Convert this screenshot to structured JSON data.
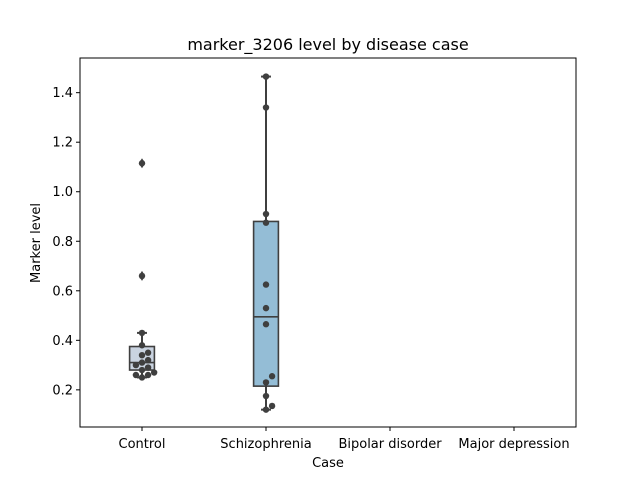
{
  "chart_data": {
    "type": "box",
    "title": "marker_3206 level by disease case",
    "xlabel": "Case",
    "ylabel": "Marker level",
    "ylim": [
      0.05,
      1.54
    ],
    "yticks": [
      0.2,
      0.4,
      0.6,
      0.8,
      1.0,
      1.2,
      1.4
    ],
    "ytick_labels": [
      "0.2",
      "0.4",
      "0.6",
      "0.8",
      "1.0",
      "1.2",
      "1.4"
    ],
    "grid": false,
    "categories": [
      "Control",
      "Schizophrenia",
      "Bipolar disorder",
      "Major depression"
    ],
    "boxes": [
      {
        "category": "Control",
        "whisker_low": 0.25,
        "q1": 0.28,
        "median": 0.31,
        "q3": 0.375,
        "whisker_high": 0.43,
        "fliers": [
          0.66,
          1.115
        ],
        "points": [
          0.25,
          0.26,
          0.26,
          0.27,
          0.28,
          0.29,
          0.3,
          0.31,
          0.32,
          0.34,
          0.35,
          0.38,
          0.43,
          0.66,
          1.115
        ]
      },
      {
        "category": "Schizophrenia",
        "whisker_low": 0.12,
        "q1": 0.215,
        "median": 0.495,
        "q3": 0.88,
        "whisker_high": 1.465,
        "fliers": [],
        "points": [
          0.12,
          0.135,
          0.175,
          0.23,
          0.255,
          0.465,
          0.53,
          0.625,
          0.875,
          0.91,
          1.34,
          1.465
        ]
      },
      {
        "category": "Bipolar disorder",
        "points": []
      },
      {
        "category": "Major depression",
        "points": []
      }
    ],
    "colors": {
      "box_fills": [
        "#c9d3e0",
        "#94bdd6"
      ],
      "box_edge": "#3f3f3f",
      "points": "#3f3f3f"
    }
  }
}
